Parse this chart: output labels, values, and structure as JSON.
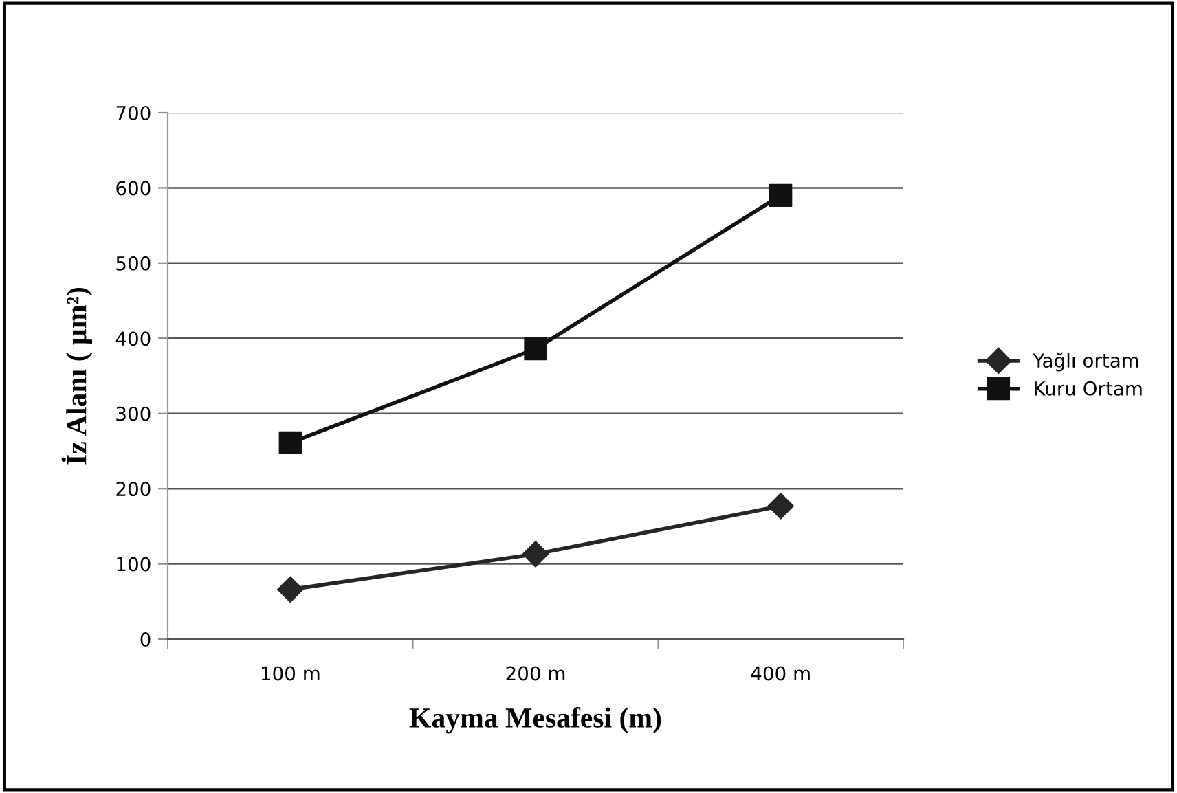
{
  "chart_data": {
    "type": "line",
    "xlabel": "Kayma Mesafesi (m)",
    "ylabel": "İz Alanı ( µm²)",
    "categories": [
      "100 m",
      "200 m",
      "400 m"
    ],
    "series": [
      {
        "name": "Yağlı ortam",
        "color": "#262626",
        "marker": "diamond",
        "values": [
          66,
          113,
          177
        ]
      },
      {
        "name": "Kuru Ortam",
        "color": "#111111",
        "marker": "square",
        "values": [
          261,
          386,
          590
        ]
      }
    ],
    "ylim": [
      0,
      700
    ],
    "yticks": [
      0,
      100,
      200,
      300,
      400,
      500,
      600,
      700
    ],
    "grid": "y",
    "legend": "right",
    "line_style": "solid"
  }
}
